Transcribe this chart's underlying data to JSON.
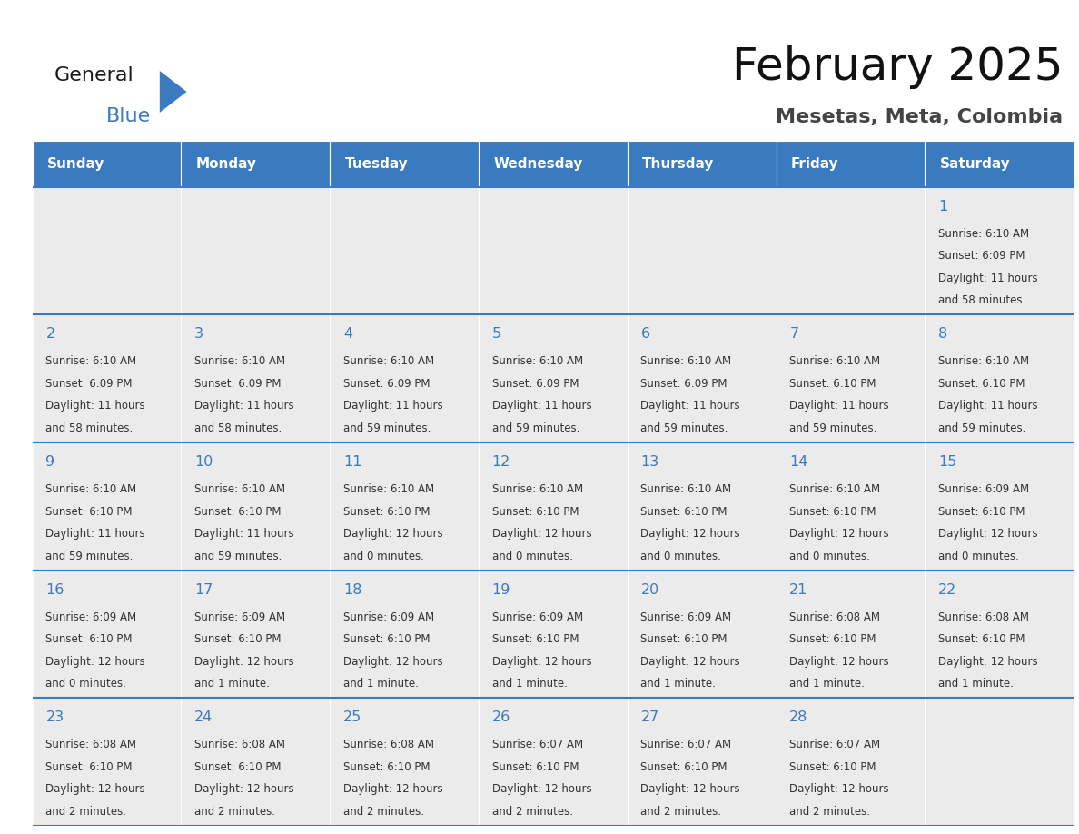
{
  "title": "February 2025",
  "subtitle": "Mesetas, Meta, Colombia",
  "header_bg": "#3a7abf",
  "header_text": "#ffffff",
  "cell_bg_gray": "#ebebeb",
  "cell_bg_white": "#f9f9f9",
  "day_number_color": "#3a7abf",
  "text_color": "#333333",
  "border_color": "#3a7abf",
  "weekdays": [
    "Sunday",
    "Monday",
    "Tuesday",
    "Wednesday",
    "Thursday",
    "Friday",
    "Saturday"
  ],
  "days": [
    {
      "day": 1,
      "col": 6,
      "row": 0,
      "sunrise": "6:10 AM",
      "sunset": "6:09 PM",
      "daylight_h": "11 hours",
      "daylight_m": "and 58 minutes."
    },
    {
      "day": 2,
      "col": 0,
      "row": 1,
      "sunrise": "6:10 AM",
      "sunset": "6:09 PM",
      "daylight_h": "11 hours",
      "daylight_m": "and 58 minutes."
    },
    {
      "day": 3,
      "col": 1,
      "row": 1,
      "sunrise": "6:10 AM",
      "sunset": "6:09 PM",
      "daylight_h": "11 hours",
      "daylight_m": "and 58 minutes."
    },
    {
      "day": 4,
      "col": 2,
      "row": 1,
      "sunrise": "6:10 AM",
      "sunset": "6:09 PM",
      "daylight_h": "11 hours",
      "daylight_m": "and 59 minutes."
    },
    {
      "day": 5,
      "col": 3,
      "row": 1,
      "sunrise": "6:10 AM",
      "sunset": "6:09 PM",
      "daylight_h": "11 hours",
      "daylight_m": "and 59 minutes."
    },
    {
      "day": 6,
      "col": 4,
      "row": 1,
      "sunrise": "6:10 AM",
      "sunset": "6:09 PM",
      "daylight_h": "11 hours",
      "daylight_m": "and 59 minutes."
    },
    {
      "day": 7,
      "col": 5,
      "row": 1,
      "sunrise": "6:10 AM",
      "sunset": "6:10 PM",
      "daylight_h": "11 hours",
      "daylight_m": "and 59 minutes."
    },
    {
      "day": 8,
      "col": 6,
      "row": 1,
      "sunrise": "6:10 AM",
      "sunset": "6:10 PM",
      "daylight_h": "11 hours",
      "daylight_m": "and 59 minutes."
    },
    {
      "day": 9,
      "col": 0,
      "row": 2,
      "sunrise": "6:10 AM",
      "sunset": "6:10 PM",
      "daylight_h": "11 hours",
      "daylight_m": "and 59 minutes."
    },
    {
      "day": 10,
      "col": 1,
      "row": 2,
      "sunrise": "6:10 AM",
      "sunset": "6:10 PM",
      "daylight_h": "11 hours",
      "daylight_m": "and 59 minutes."
    },
    {
      "day": 11,
      "col": 2,
      "row": 2,
      "sunrise": "6:10 AM",
      "sunset": "6:10 PM",
      "daylight_h": "12 hours",
      "daylight_m": "and 0 minutes."
    },
    {
      "day": 12,
      "col": 3,
      "row": 2,
      "sunrise": "6:10 AM",
      "sunset": "6:10 PM",
      "daylight_h": "12 hours",
      "daylight_m": "and 0 minutes."
    },
    {
      "day": 13,
      "col": 4,
      "row": 2,
      "sunrise": "6:10 AM",
      "sunset": "6:10 PM",
      "daylight_h": "12 hours",
      "daylight_m": "and 0 minutes."
    },
    {
      "day": 14,
      "col": 5,
      "row": 2,
      "sunrise": "6:10 AM",
      "sunset": "6:10 PM",
      "daylight_h": "12 hours",
      "daylight_m": "and 0 minutes."
    },
    {
      "day": 15,
      "col": 6,
      "row": 2,
      "sunrise": "6:09 AM",
      "sunset": "6:10 PM",
      "daylight_h": "12 hours",
      "daylight_m": "and 0 minutes."
    },
    {
      "day": 16,
      "col": 0,
      "row": 3,
      "sunrise": "6:09 AM",
      "sunset": "6:10 PM",
      "daylight_h": "12 hours",
      "daylight_m": "and 0 minutes."
    },
    {
      "day": 17,
      "col": 1,
      "row": 3,
      "sunrise": "6:09 AM",
      "sunset": "6:10 PM",
      "daylight_h": "12 hours",
      "daylight_m": "and 1 minute."
    },
    {
      "day": 18,
      "col": 2,
      "row": 3,
      "sunrise": "6:09 AM",
      "sunset": "6:10 PM",
      "daylight_h": "12 hours",
      "daylight_m": "and 1 minute."
    },
    {
      "day": 19,
      "col": 3,
      "row": 3,
      "sunrise": "6:09 AM",
      "sunset": "6:10 PM",
      "daylight_h": "12 hours",
      "daylight_m": "and 1 minute."
    },
    {
      "day": 20,
      "col": 4,
      "row": 3,
      "sunrise": "6:09 AM",
      "sunset": "6:10 PM",
      "daylight_h": "12 hours",
      "daylight_m": "and 1 minute."
    },
    {
      "day": 21,
      "col": 5,
      "row": 3,
      "sunrise": "6:08 AM",
      "sunset": "6:10 PM",
      "daylight_h": "12 hours",
      "daylight_m": "and 1 minute."
    },
    {
      "day": 22,
      "col": 6,
      "row": 3,
      "sunrise": "6:08 AM",
      "sunset": "6:10 PM",
      "daylight_h": "12 hours",
      "daylight_m": "and 1 minute."
    },
    {
      "day": 23,
      "col": 0,
      "row": 4,
      "sunrise": "6:08 AM",
      "sunset": "6:10 PM",
      "daylight_h": "12 hours",
      "daylight_m": "and 2 minutes."
    },
    {
      "day": 24,
      "col": 1,
      "row": 4,
      "sunrise": "6:08 AM",
      "sunset": "6:10 PM",
      "daylight_h": "12 hours",
      "daylight_m": "and 2 minutes."
    },
    {
      "day": 25,
      "col": 2,
      "row": 4,
      "sunrise": "6:08 AM",
      "sunset": "6:10 PM",
      "daylight_h": "12 hours",
      "daylight_m": "and 2 minutes."
    },
    {
      "day": 26,
      "col": 3,
      "row": 4,
      "sunrise": "6:07 AM",
      "sunset": "6:10 PM",
      "daylight_h": "12 hours",
      "daylight_m": "and 2 minutes."
    },
    {
      "day": 27,
      "col": 4,
      "row": 4,
      "sunrise": "6:07 AM",
      "sunset": "6:10 PM",
      "daylight_h": "12 hours",
      "daylight_m": "and 2 minutes."
    },
    {
      "day": 28,
      "col": 5,
      "row": 4,
      "sunrise": "6:07 AM",
      "sunset": "6:10 PM",
      "daylight_h": "12 hours",
      "daylight_m": "and 2 minutes."
    }
  ],
  "fig_width": 11.88,
  "fig_height": 9.18,
  "dpi": 100
}
